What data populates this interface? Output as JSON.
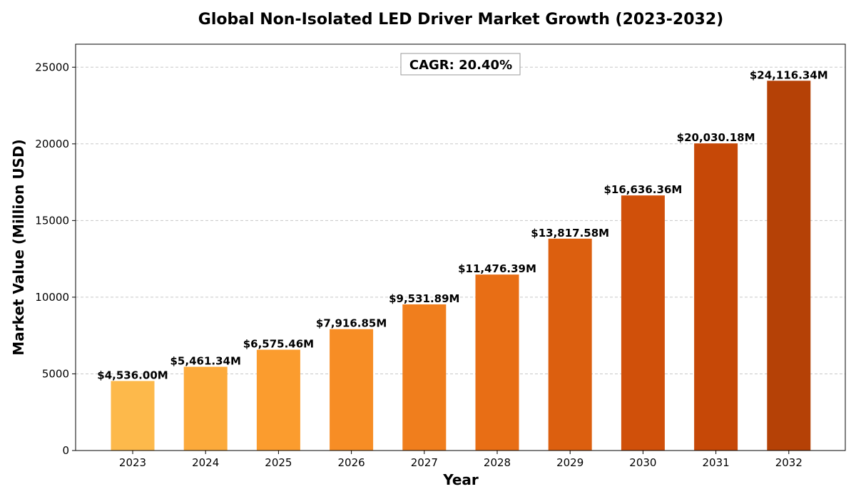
{
  "chart_data": {
    "type": "bar",
    "title": "Global Non-Isolated LED Driver Market Growth (2023-2032)",
    "xlabel": "Year",
    "ylabel": "Market Value (Million USD)",
    "categories": [
      "2023",
      "2024",
      "2025",
      "2026",
      "2027",
      "2028",
      "2029",
      "2030",
      "2031",
      "2032"
    ],
    "values": [
      4536.0,
      5461.34,
      6575.46,
      7916.85,
      9531.89,
      11476.39,
      13817.58,
      16636.36,
      20030.18,
      24116.34
    ],
    "data_labels": [
      "$4,536.00M",
      "$5,461.34M",
      "$6,575.46M",
      "$7,916.85M",
      "$9,531.89M",
      "$11,476.39M",
      "$13,817.58M",
      "$16,636.36M",
      "$20,030.18M",
      "$24,116.34M"
    ],
    "bar_colors": [
      "#FDB94B",
      "#FCAA3B",
      "#FB9C2E",
      "#F78D25",
      "#F07E1D",
      "#E86E15",
      "#DC5F0F",
      "#D0500A",
      "#C64807",
      "#B54106"
    ],
    "ylim": [
      0,
      26500
    ],
    "yticks": [
      0,
      5000,
      10000,
      15000,
      20000,
      25000
    ],
    "grid": true,
    "annotation": "CAGR: 20.40%"
  }
}
